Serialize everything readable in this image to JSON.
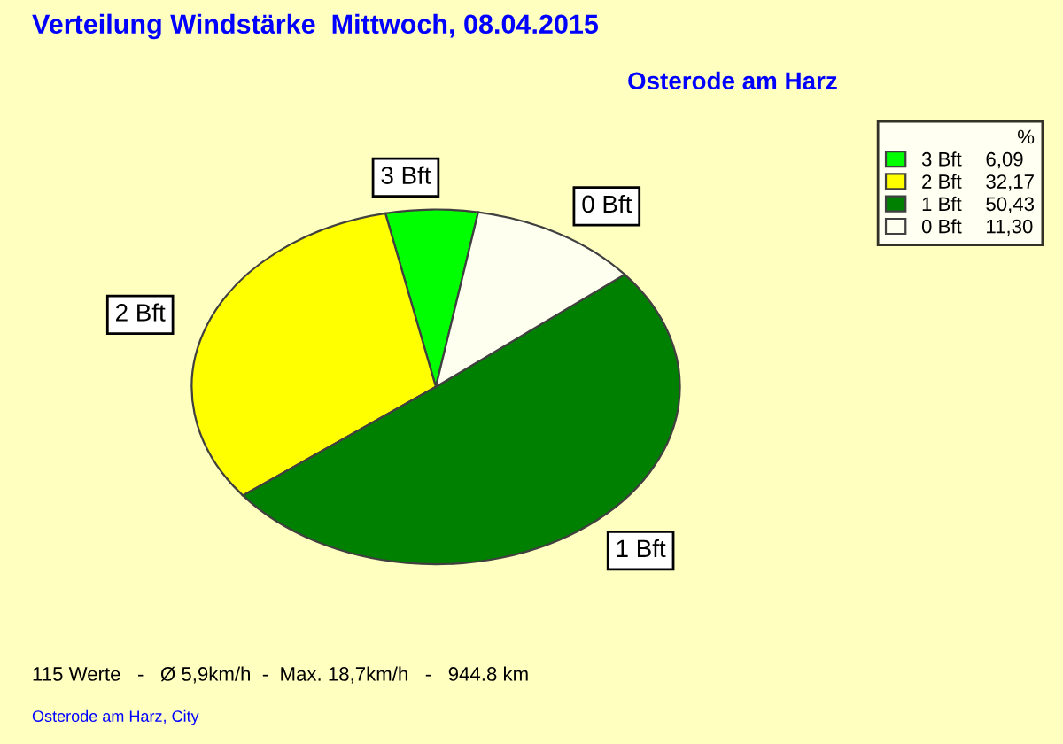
{
  "chart_data": {
    "type": "pie",
    "title": "Verteilung Windstärke  Mittwoch, 08.04.2015",
    "subtitle": "Osterode am Harz",
    "categories": [
      "3 Bft",
      "2 Bft",
      "1 Bft",
      "0 Bft"
    ],
    "values": [
      6.09,
      32.17,
      50.43,
      11.3
    ],
    "value_labels": [
      "6,09",
      "32,17",
      "50,43",
      "11,30"
    ],
    "colors": [
      "#00ff00",
      "#ffff00",
      "#008000",
      "#fffff0"
    ],
    "legend": "top right",
    "legend_title": "%",
    "annotations": [
      "115 Werte   -   Ø 5,9km/h  -  Max. 18,7km/h   -   944.8 km",
      "Osterode am Harz, City"
    ]
  }
}
